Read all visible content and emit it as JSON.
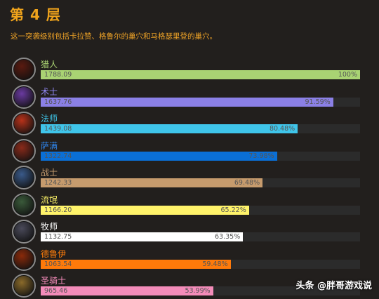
{
  "header": {
    "title": "第 4 层",
    "subtitle": "这一突袭级别包括卡拉赞、格鲁尔的巢穴和马格瑟里登的巢穴。"
  },
  "chart_data": {
    "type": "bar",
    "orientation": "horizontal",
    "xlim": [
      0,
      1788.09
    ],
    "categories": [
      "猎人",
      "术士",
      "法师",
      "萨满",
      "战士",
      "流氓",
      "牧师",
      "德鲁伊",
      "圣骑士"
    ],
    "values": [
      1788.09,
      1637.76,
      1439.08,
      1322.74,
      1242.33,
      1166.2,
      1132.75,
      1063.54,
      965.46
    ],
    "value_labels": [
      "1788.09",
      "1637.76",
      "1439.08",
      "1322.74",
      "1242.33",
      "1166.20",
      "1132.75",
      "1063.54",
      "965.46"
    ],
    "percent_labels": [
      "100%",
      "91.59%",
      "80.48%",
      "73.98%",
      "69.48%",
      "65.22%",
      "63.35%",
      "59.48%",
      "53.99%"
    ],
    "bar_colors": [
      "#a9d373",
      "#8b80e6",
      "#3fc5ea",
      "#0a6fd6",
      "#c69b6d",
      "#fff36a",
      "#ffffff",
      "#ff7a0a",
      "#f48cba"
    ],
    "name_colors": [
      "#abd473",
      "#8e85ee",
      "#3fc7eb",
      "#2f86ee",
      "#c79c6e",
      "#fff569",
      "#ffffff",
      "#ff7d0a",
      "#f58cba"
    ],
    "icons": [
      "hunter-icon",
      "warlock-icon",
      "mage-icon",
      "shaman-icon",
      "warrior-icon",
      "rogue-icon",
      "priest-icon",
      "druid-icon",
      "paladin-icon"
    ],
    "icon_colors": [
      "#5a1a10",
      "#6a3aa0",
      "#b8321a",
      "#8a2a1a",
      "#3a5a8a",
      "#3a5a3a",
      "#4a4a5a",
      "#8a2a0a",
      "#8a6a2a"
    ],
    "grid": false
  },
  "watermark": "头条 @胖哥游戏说"
}
